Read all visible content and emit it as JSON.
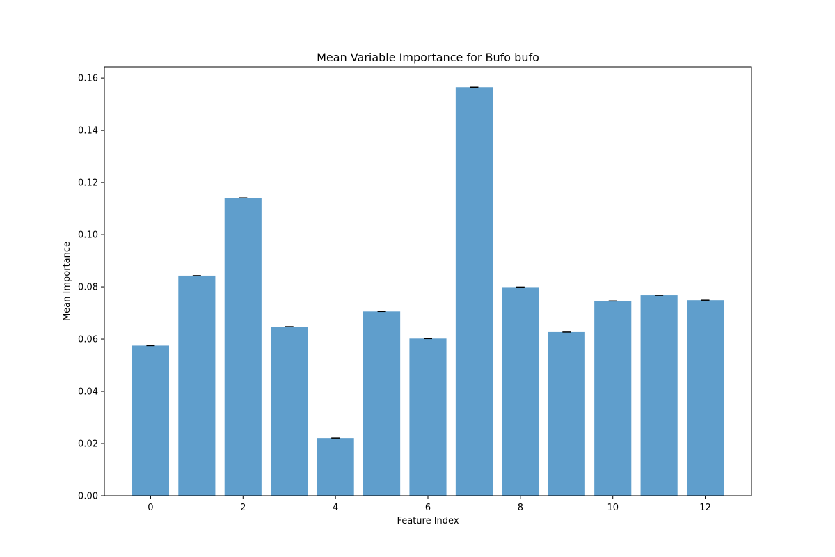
{
  "chart_data": {
    "type": "bar",
    "title": "Mean Variable Importance for Bufo bufo",
    "xlabel": "Feature Index",
    "ylabel": "Mean Importance",
    "categories": [
      0,
      1,
      2,
      3,
      4,
      5,
      6,
      7,
      8,
      9,
      10,
      11,
      12
    ],
    "values": [
      0.0575,
      0.0843,
      0.1141,
      0.0648,
      0.0221,
      0.0706,
      0.0602,
      0.1565,
      0.0799,
      0.0627,
      0.0746,
      0.0768,
      0.0749
    ],
    "error_bars": true,
    "x_ticks": [
      0,
      2,
      4,
      6,
      8,
      10,
      12
    ],
    "y_ticks": [
      0.0,
      0.02,
      0.04,
      0.06,
      0.08,
      0.1,
      0.12,
      0.14,
      0.16
    ],
    "y_tick_labels": [
      "0.00",
      "0.02",
      "0.04",
      "0.06",
      "0.08",
      "0.10",
      "0.12",
      "0.14",
      "0.16"
    ],
    "xlim": [
      -1.0,
      13.0
    ],
    "ylim": [
      0,
      0.1643
    ],
    "bar_color": "#5f9ecc",
    "grid": false,
    "legend": false
  }
}
